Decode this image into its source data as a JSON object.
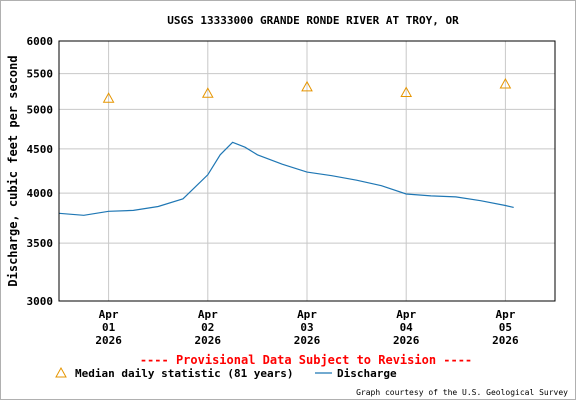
{
  "chart_data": {
    "type": "line",
    "title": "USGS 13333000 GRANDE RONDE RIVER AT TROY, OR",
    "ylabel": "Discharge, cubic feet per second",
    "xlabel": "",
    "y_scale": "log",
    "ylim": [
      3000,
      6000
    ],
    "y_ticks": [
      "6000",
      "5500",
      "5000",
      "4500",
      "4000",
      "3500",
      "3000"
    ],
    "y_tick_values": [
      6000,
      5500,
      5000,
      4500,
      4000,
      3500,
      3000
    ],
    "xlim": [
      "2026-03-31 12:00",
      "2026-04-05 12:00"
    ],
    "x_ticks": [
      {
        "value": "2026-04-01",
        "line1": "Apr",
        "line2": "01",
        "line3": "2026"
      },
      {
        "value": "2026-04-02",
        "line1": "Apr",
        "line2": "02",
        "line3": "2026"
      },
      {
        "value": "2026-04-03",
        "line1": "Apr",
        "line2": "03",
        "line3": "2026"
      },
      {
        "value": "2026-04-04",
        "line1": "Apr",
        "line2": "04",
        "line3": "2026"
      },
      {
        "value": "2026-04-05",
        "line1": "Apr",
        "line2": "05",
        "line3": "2026"
      }
    ],
    "grid": true,
    "series": [
      {
        "name": "Discharge",
        "kind": "line",
        "color": "#1f77b4",
        "points": [
          {
            "x": "2026-03-31 12:00",
            "y": 3790
          },
          {
            "x": "2026-03-31 18:00",
            "y": 3770
          },
          {
            "x": "2026-04-01 00:00",
            "y": 3810
          },
          {
            "x": "2026-04-01 06:00",
            "y": 3820
          },
          {
            "x": "2026-04-01 12:00",
            "y": 3860
          },
          {
            "x": "2026-04-01 18:00",
            "y": 3940
          },
          {
            "x": "2026-04-02 00:00",
            "y": 4200
          },
          {
            "x": "2026-04-02 03:00",
            "y": 4430
          },
          {
            "x": "2026-04-02 06:00",
            "y": 4580
          },
          {
            "x": "2026-04-02 09:00",
            "y": 4520
          },
          {
            "x": "2026-04-02 12:00",
            "y": 4430
          },
          {
            "x": "2026-04-02 18:00",
            "y": 4320
          },
          {
            "x": "2026-04-03 00:00",
            "y": 4230
          },
          {
            "x": "2026-04-03 06:00",
            "y": 4190
          },
          {
            "x": "2026-04-03 12:00",
            "y": 4140
          },
          {
            "x": "2026-04-03 18:00",
            "y": 4080
          },
          {
            "x": "2026-04-04 00:00",
            "y": 3990
          },
          {
            "x": "2026-04-04 06:00",
            "y": 3970
          },
          {
            "x": "2026-04-04 12:00",
            "y": 3960
          },
          {
            "x": "2026-04-04 18:00",
            "y": 3920
          },
          {
            "x": "2026-04-05 00:00",
            "y": 3870
          },
          {
            "x": "2026-04-05 02:00",
            "y": 3850
          }
        ]
      },
      {
        "name": "Median daily statistic (81 years)",
        "kind": "marker",
        "marker": "triangle",
        "color": "#e69500",
        "points": [
          {
            "x": "2026-04-01",
            "y": 5150
          },
          {
            "x": "2026-04-02",
            "y": 5220
          },
          {
            "x": "2026-04-03",
            "y": 5310
          },
          {
            "x": "2026-04-04",
            "y": 5230
          },
          {
            "x": "2026-04-05",
            "y": 5350
          }
        ]
      }
    ],
    "legend": {
      "placement": "bottom",
      "entries": [
        {
          "label": "Median daily statistic (81 years)",
          "icon": "triangle-icon",
          "color": "#e69500"
        },
        {
          "label": "Discharge",
          "icon": "line-swatch-icon",
          "color": "#1f77b4"
        }
      ]
    },
    "annotations": {
      "provisional": "---- Provisional Data Subject to Revision ----",
      "credit": "Graph courtesy of the U.S. Geological Survey"
    }
  }
}
